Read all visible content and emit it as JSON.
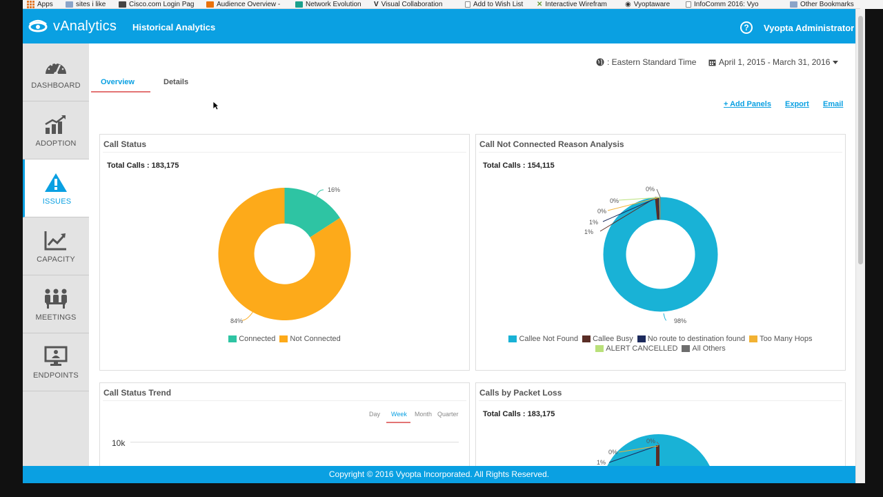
{
  "browser": {
    "bookmarks": [
      {
        "label": "Apps",
        "icon": "apps-grid-icon",
        "color": "#e2792a"
      },
      {
        "label": "sites i like",
        "icon": "folder-icon",
        "color": "#8aa4c8"
      },
      {
        "label": "Cisco.com Login Pag",
        "icon": "cisco-icon",
        "color": "#444444"
      },
      {
        "label": "Audience Overview -",
        "icon": "analytics-icon",
        "color": "#e8710a"
      },
      {
        "label": "Network Evolution",
        "icon": "green-square-icon",
        "color": "#1aa08c"
      },
      {
        "label": "Visual Collaboration",
        "icon": "letter-v-icon",
        "color": "#555555"
      },
      {
        "label": "Add to Wish List",
        "icon": "page-icon",
        "color": "#888888"
      },
      {
        "label": "Interactive Wirefram",
        "icon": "x-icon",
        "color": "#6a9a3a"
      },
      {
        "label": "Vyoptaware",
        "icon": "vyopta-icon",
        "color": "#333333"
      },
      {
        "label": "InfoComm 2016: Vyo",
        "icon": "page-icon",
        "color": "#888888"
      }
    ],
    "other_bookmarks": "Other Bookmarks"
  },
  "header": {
    "logo_text": "vAnalytics",
    "title": "Historical Analytics",
    "help_glyph": "?",
    "user": "Vyopta Administrator"
  },
  "sidebar": {
    "items": [
      {
        "label": "DASHBOARD",
        "icon": "dashboard-gauge-icon",
        "active": false
      },
      {
        "label": "ADOPTION",
        "icon": "adoption-chart-icon",
        "active": false
      },
      {
        "label": "ISSUES",
        "icon": "warning-triangle-icon",
        "active": true
      },
      {
        "label": "CAPACITY",
        "icon": "capacity-trend-icon",
        "active": false
      },
      {
        "label": "MEETINGS",
        "icon": "meetings-people-icon",
        "active": false
      },
      {
        "label": "ENDPOINTS",
        "icon": "endpoint-monitor-icon",
        "active": false
      }
    ]
  },
  "toolbar": {
    "timezone": ": Eastern Standard Time",
    "date_range": "April 1, 2015 - March 31, 2016",
    "tabs": [
      "Overview",
      "Details"
    ],
    "actions": [
      "+ Add Panels",
      "Export",
      "Email"
    ]
  },
  "panels": {
    "call_status": {
      "title": "Call Status",
      "total": "Total Calls : 183,175",
      "legend": [
        {
          "label": "Connected",
          "color": "#2ec4a3"
        },
        {
          "label": "Not Connected",
          "color": "#fdaa1a"
        }
      ]
    },
    "not_connected": {
      "title": "Call Not Connected Reason Analysis",
      "total": "Total Calls : 154,115",
      "legend": [
        {
          "label": "Callee Not Found",
          "color": "#19b2d6"
        },
        {
          "label": "Callee Busy",
          "color": "#5a2e26"
        },
        {
          "label": "No route to destination found",
          "color": "#1c2a5c"
        },
        {
          "label": "Too Many Hops",
          "color": "#f2b233"
        },
        {
          "label": "ALERT CANCELLED",
          "color": "#b9e07a"
        },
        {
          "label": "All Others",
          "color": "#6d6d6d"
        }
      ]
    },
    "trend": {
      "title": "Call Status Trend",
      "granularity": [
        "Day",
        "Week",
        "Month",
        "Quarter"
      ],
      "active_granularity": "Week",
      "ytick": "10k"
    },
    "packet_loss": {
      "title": "Calls by Packet Loss",
      "total": "Total Calls : 183,175"
    }
  },
  "chart_data": [
    {
      "type": "pie",
      "title": "Call Status",
      "categories": [
        "Connected",
        "Not Connected"
      ],
      "values": [
        16,
        84
      ],
      "labels": [
        "16%",
        "84%"
      ],
      "colors": [
        "#2ec4a3",
        "#fdaa1a"
      ],
      "legend": "bottom"
    },
    {
      "type": "pie",
      "title": "Call Not Connected Reason Analysis",
      "categories": [
        "Callee Not Found",
        "Callee Busy",
        "No route to destination found",
        "Too Many Hops",
        "ALERT CANCELLED",
        "All Others"
      ],
      "values": [
        97.7,
        1,
        0.5,
        0.3,
        0.2,
        0.3
      ],
      "labels": [
        "98%",
        "1%",
        "1%",
        "0%",
        "0%",
        "0%"
      ],
      "colors": [
        "#19b2d6",
        "#5a2e26",
        "#1c2a5c",
        "#f2b233",
        "#b9e07a",
        "#6d6d6d"
      ],
      "legend": "bottom"
    },
    {
      "type": "pie",
      "title": "Calls by Packet Loss",
      "labels": [
        "1%",
        "0%",
        "0%"
      ]
    }
  ],
  "footer": {
    "copyright": "Copyright © 2016 Vyopta Incorporated. All Rights Reserved."
  }
}
